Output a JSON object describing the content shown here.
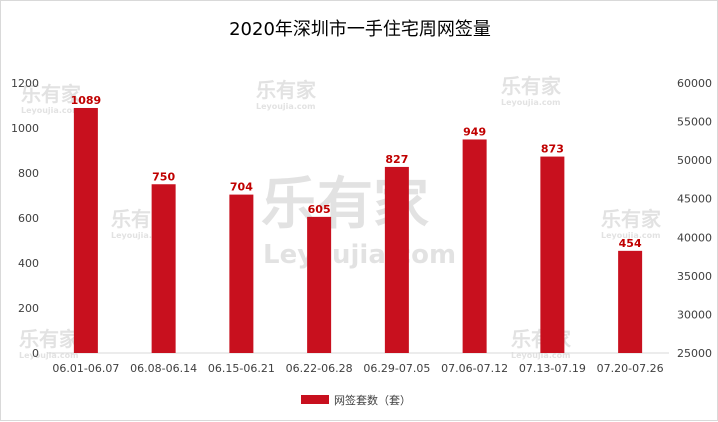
{
  "chart_data": {
    "type": "bar",
    "title": "2020年深圳市一手住宅周网签量",
    "categories": [
      "06.01-06.07",
      "06.08-06.14",
      "06.15-06.21",
      "06.22-06.28",
      "06.29-07.05",
      "07.06-07.12",
      "07.13-07.19",
      "07.20-07.26"
    ],
    "series": [
      {
        "name": "网签套数（套）",
        "values": [
          1089,
          750,
          704,
          605,
          827,
          949,
          873,
          454
        ],
        "color": "#c8101e"
      }
    ],
    "ylim": [
      0,
      1200
    ],
    "yticks": [
      0,
      200,
      400,
      600,
      800,
      1000,
      1200
    ],
    "y2lim": [
      25000,
      60000
    ],
    "y2ticks": [
      25000,
      30000,
      35000,
      40000,
      45000,
      50000,
      55000,
      60000
    ],
    "grid": false,
    "legend": "bottom"
  },
  "watermark": {
    "brand": "乐有家",
    "domain": "Leyoujia.com"
  }
}
